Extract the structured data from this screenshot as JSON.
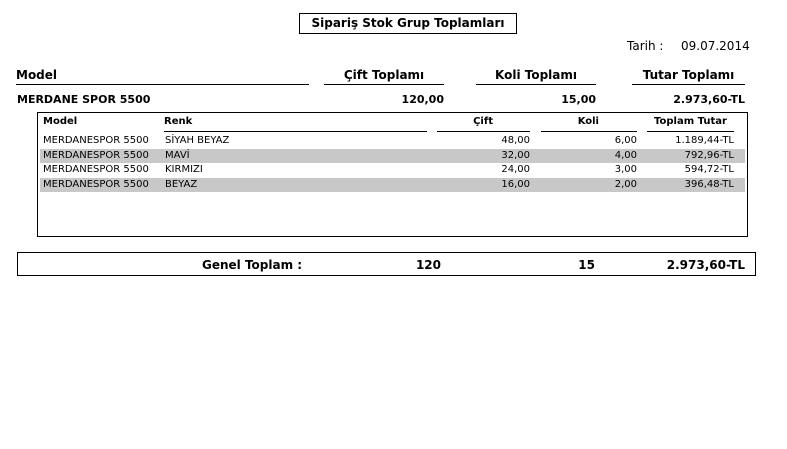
{
  "report": {
    "title": "Sipariş Stok Grup Toplamları",
    "date_label": "Tarih :",
    "date_value": "09.07.2014"
  },
  "columns": {
    "model": "Model",
    "cift_toplami": "Çift Toplamı",
    "koli_toplami": "Koli Toplamı",
    "tutar_toplami": "Tutar Toplamı"
  },
  "group": {
    "model": "MERDANE SPOR 5500",
    "cift": "120,00",
    "koli": "15,00",
    "tutar": "2.973,60-TL"
  },
  "detail": {
    "headers": {
      "model": "Model",
      "renk": "Renk",
      "cift": "Çift",
      "koli": "Koli",
      "toplam_tutar": "Toplam Tutar"
    },
    "rows": [
      {
        "model": "MERDANESPOR 5500",
        "renk": "SİYAH BEYAZ",
        "cift": "48,00",
        "koli": "6,00",
        "tutar": "1.189,44-TL"
      },
      {
        "model": "MERDANESPOR 5500",
        "renk": "MAVİ",
        "cift": "32,00",
        "koli": "4,00",
        "tutar": "792,96-TL"
      },
      {
        "model": "MERDANESPOR 5500",
        "renk": "KIRMIZI",
        "cift": "24,00",
        "koli": "3,00",
        "tutar": "594,72-TL"
      },
      {
        "model": "MERDANESPOR 5500",
        "renk": "BEYAZ",
        "cift": "16,00",
        "koli": "2,00",
        "tutar": "396,48-TL"
      }
    ]
  },
  "grand_total": {
    "label": "Genel Toplam :",
    "cift": "120",
    "koli": "15",
    "tutar": "2.973,60-TL"
  }
}
